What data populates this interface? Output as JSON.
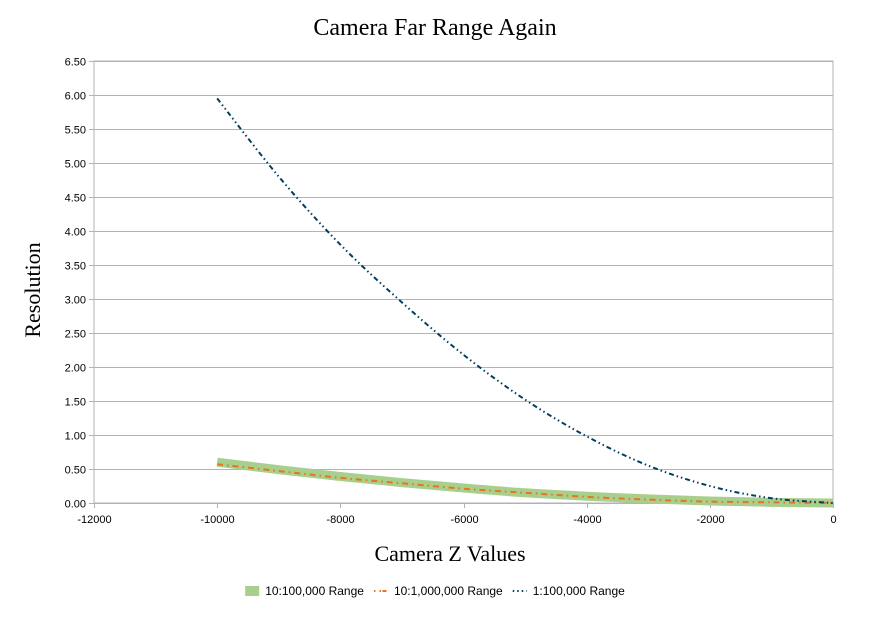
{
  "chart_data": {
    "type": "line",
    "title": "Camera Far Range Again",
    "xlabel": "Camera Z Values",
    "ylabel": "Resolution",
    "xlim": [
      -12000,
      0
    ],
    "ylim": [
      0,
      6.5
    ],
    "xticks": [
      -12000,
      -10000,
      -8000,
      -6000,
      -4000,
      -2000,
      0
    ],
    "yticks": [
      0,
      0.5,
      1,
      1.5,
      2,
      2.5,
      3,
      3.5,
      4,
      4.5,
      5,
      5.5,
      6,
      6.5
    ],
    "xtick_labels": [
      "-12000",
      "-10000",
      "-8000",
      "-6000",
      "-4000",
      "-2000",
      "0"
    ],
    "ytick_labels": [
      "0.00",
      "0.50",
      "1.00",
      "1.50",
      "2.00",
      "2.50",
      "3.00",
      "3.50",
      "4.00",
      "4.50",
      "5.00",
      "5.50",
      "6.00",
      "6.50"
    ],
    "grid": "horizontal",
    "legend_position": "bottom",
    "x": [
      -10000,
      -9000,
      -8000,
      -7000,
      -6000,
      -5000,
      -4000,
      -3000,
      -2000,
      -1000,
      0
    ],
    "series": [
      {
        "name": "10:100,000 Range",
        "color": "#a9cf8c",
        "style": "thick-solid",
        "values": [
          0.6,
          0.49,
          0.39,
          0.3,
          0.22,
          0.15,
          0.1,
          0.06,
          0.03,
          0.01,
          0.0
        ]
      },
      {
        "name": "10:1,000,000 Range",
        "color": "#e8741f",
        "style": "dash-dot",
        "values": [
          0.57,
          0.47,
          0.37,
          0.29,
          0.21,
          0.15,
          0.09,
          0.05,
          0.02,
          0.01,
          0.0
        ]
      },
      {
        "name": "1:100,000 Range",
        "color": "#003f5f",
        "style": "dash-dot-dot",
        "values": [
          5.95,
          4.8,
          3.8,
          2.95,
          2.18,
          1.52,
          0.98,
          0.55,
          0.25,
          0.07,
          0.0
        ]
      }
    ]
  }
}
